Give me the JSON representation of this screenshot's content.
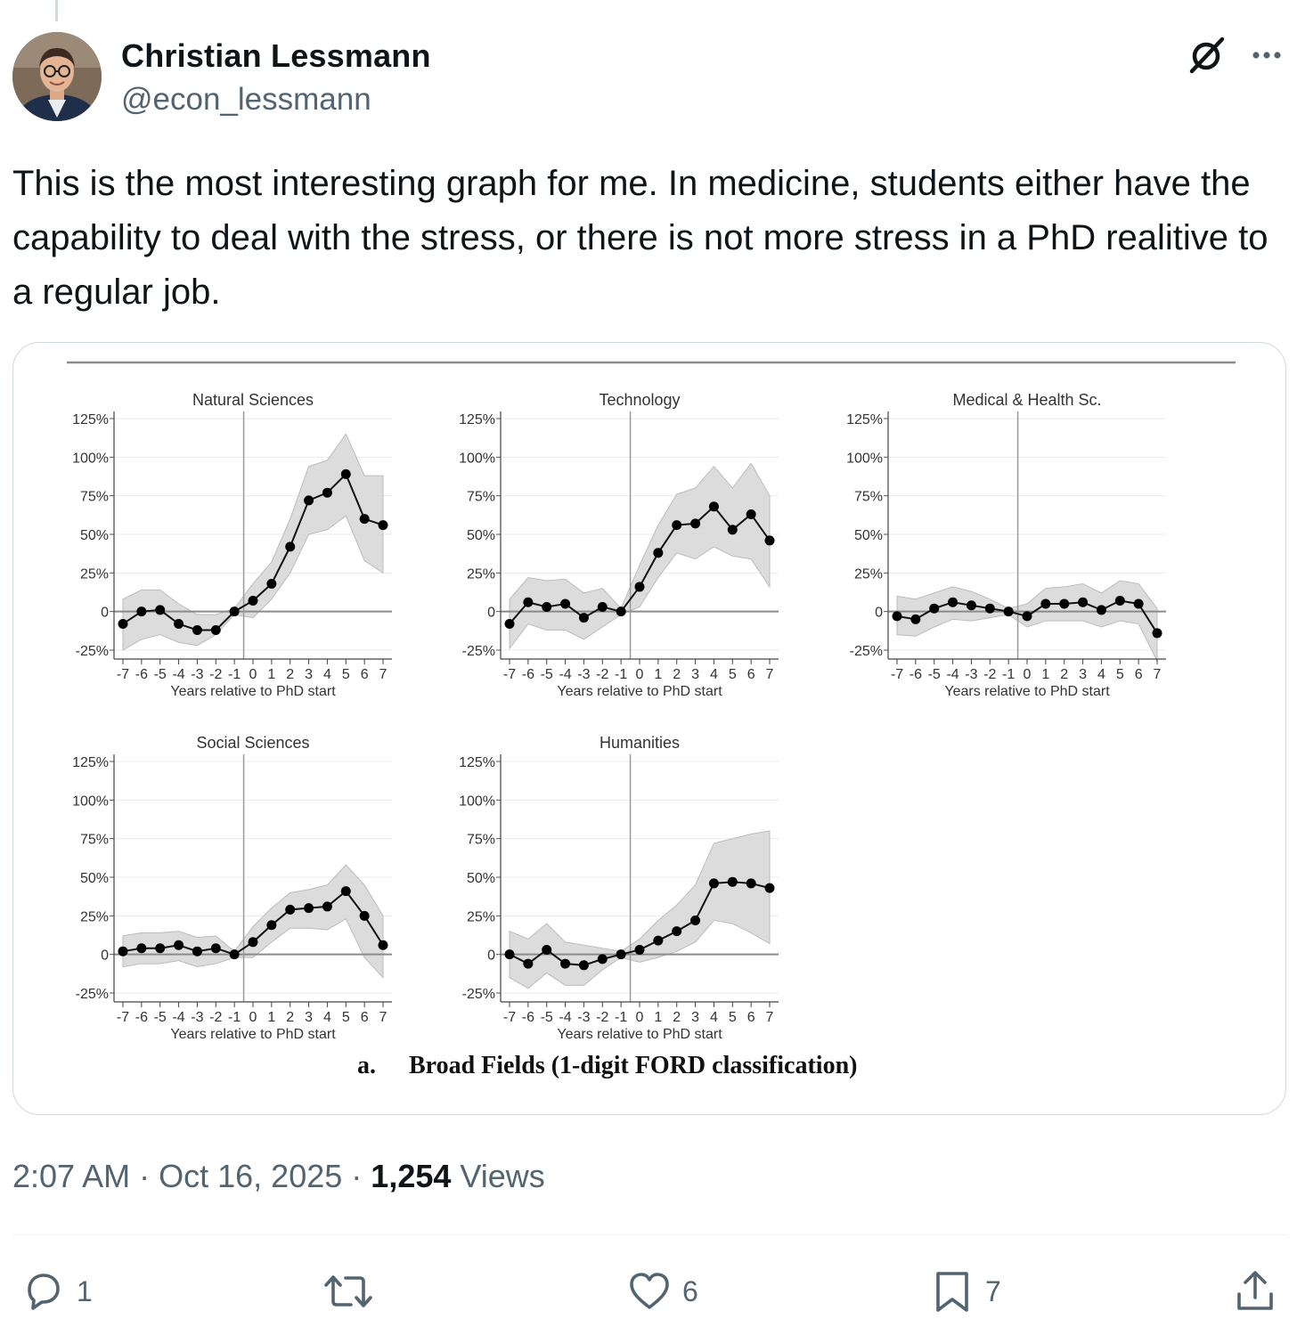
{
  "author": {
    "name": "Christian Lessmann",
    "handle": "@econ_lessmann"
  },
  "icons": {
    "grok": "grok-icon",
    "more": "more-icon",
    "reply": "reply-icon",
    "retweet": "retweet-icon",
    "like": "heart-icon",
    "bookmark": "bookmark-icon",
    "share": "share-icon"
  },
  "tweet": {
    "text": "This is the most interesting graph for me. In medicine, students either have the capability to deal with the stress, or there is not more stress in a PhD realitive to a regular job.",
    "time": "2:07 AM",
    "sep1": "·",
    "date": "Oct 16, 2025",
    "sep2": "·",
    "views_count": "1,254",
    "views_label": "Views"
  },
  "actions": {
    "replies": "1",
    "retweets": "",
    "likes": "6",
    "bookmarks": "7"
  },
  "figure": {
    "caption_prefix": "a.",
    "caption": "Broad Fields (1-digit FORD classification)"
  },
  "chart_data": [
    {
      "type": "line",
      "title": "Natural Sciences",
      "xlabel": "Years relative to PhD start",
      "x": [
        -7,
        -6,
        -5,
        -4,
        -3,
        -2,
        -1,
        0,
        1,
        2,
        3,
        4,
        5,
        6,
        7
      ],
      "y": [
        -8,
        0,
        1,
        -8,
        -12,
        -12,
        0,
        7,
        18,
        42,
        72,
        77,
        89,
        60,
        56
      ],
      "ci_low": [
        -25,
        -18,
        -15,
        -20,
        -22,
        -15,
        -2,
        -4,
        8,
        25,
        50,
        53,
        62,
        33,
        25
      ],
      "ci_high": [
        8,
        14,
        14,
        5,
        -2,
        -2,
        2,
        18,
        32,
        60,
        94,
        98,
        115,
        88,
        88
      ],
      "yticks": [
        "125%",
        "100%",
        "75%",
        "50%",
        "25%",
        "0",
        "-25%"
      ],
      "ylim": [
        -25,
        125
      ]
    },
    {
      "type": "line",
      "title": "Technology",
      "xlabel": "Years relative to PhD start",
      "x": [
        -7,
        -6,
        -5,
        -4,
        -3,
        -2,
        -1,
        0,
        1,
        2,
        3,
        4,
        5,
        6,
        7
      ],
      "y": [
        -8,
        6,
        3,
        5,
        -4,
        3,
        0,
        16,
        38,
        56,
        57,
        68,
        53,
        63,
        46
      ],
      "ci_low": [
        -24,
        -8,
        -12,
        -12,
        -18,
        -10,
        -2,
        3,
        22,
        38,
        34,
        42,
        36,
        34,
        16
      ],
      "ci_high": [
        8,
        22,
        20,
        21,
        12,
        15,
        2,
        30,
        56,
        76,
        80,
        94,
        80,
        96,
        75
      ],
      "yticks": [
        "125%",
        "100%",
        "75%",
        "50%",
        "25%",
        "0",
        "-25%"
      ],
      "ylim": [
        -25,
        125
      ]
    },
    {
      "type": "line",
      "title": "Medical & Health Sc.",
      "xlabel": "Years relative to PhD start",
      "x": [
        -7,
        -6,
        -5,
        -4,
        -3,
        -2,
        -1,
        0,
        1,
        2,
        3,
        4,
        5,
        6,
        7
      ],
      "y": [
        -3,
        -5,
        2,
        6,
        4,
        2,
        0,
        -3,
        5,
        5,
        6,
        1,
        7,
        5,
        -14
      ],
      "ci_low": [
        -15,
        -16,
        -10,
        -5,
        -6,
        -4,
        -2,
        -10,
        -6,
        -6,
        -6,
        -10,
        -6,
        -8,
        -32
      ],
      "ci_high": [
        10,
        8,
        12,
        16,
        13,
        8,
        2,
        5,
        15,
        16,
        18,
        12,
        20,
        18,
        2
      ],
      "yticks": [
        "125%",
        "100%",
        "75%",
        "50%",
        "25%",
        "0",
        "-25%"
      ],
      "ylim": [
        -25,
        125
      ]
    },
    {
      "type": "line",
      "title": "Social Sciences",
      "xlabel": "Years relative to PhD start",
      "x": [
        -7,
        -6,
        -5,
        -4,
        -3,
        -2,
        -1,
        0,
        1,
        2,
        3,
        4,
        5,
        6,
        7
      ],
      "y": [
        2,
        4,
        4,
        6,
        2,
        4,
        0,
        8,
        19,
        29,
        30,
        31,
        41,
        25,
        6
      ],
      "ci_low": [
        -8,
        -6,
        -6,
        -4,
        -8,
        -6,
        -2,
        -2,
        8,
        17,
        17,
        16,
        23,
        -2,
        -15
      ],
      "ci_high": [
        12,
        14,
        14,
        15,
        11,
        12,
        2,
        18,
        30,
        40,
        42,
        45,
        58,
        45,
        25
      ],
      "yticks": [
        "125%",
        "100%",
        "75%",
        "50%",
        "25%",
        "0",
        "-25%"
      ],
      "ylim": [
        -25,
        125
      ]
    },
    {
      "type": "line",
      "title": "Humanities",
      "xlabel": "Years relative to PhD start",
      "x": [
        -7,
        -6,
        -5,
        -4,
        -3,
        -2,
        -1,
        0,
        1,
        2,
        3,
        4,
        5,
        6,
        7
      ],
      "y": [
        0,
        -6,
        3,
        -6,
        -7,
        -3,
        0,
        3,
        9,
        15,
        22,
        46,
        47,
        46,
        43
      ],
      "ci_low": [
        -15,
        -22,
        -12,
        -20,
        -20,
        -10,
        -2,
        -5,
        -2,
        2,
        8,
        22,
        20,
        14,
        7
      ],
      "ci_high": [
        15,
        10,
        20,
        8,
        6,
        4,
        2,
        10,
        22,
        32,
        45,
        72,
        75,
        78,
        80
      ],
      "yticks": [
        "125%",
        "100%",
        "75%",
        "50%",
        "25%",
        "0",
        "-25%"
      ],
      "ylim": [
        -25,
        125
      ]
    }
  ]
}
